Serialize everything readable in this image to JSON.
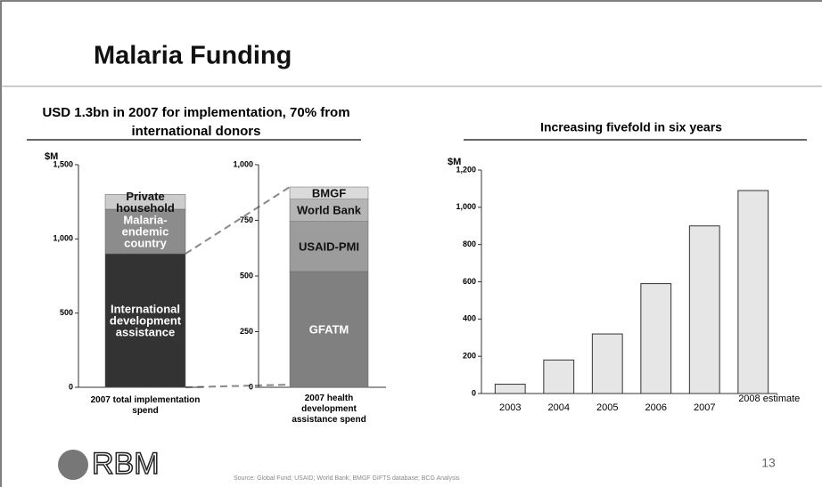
{
  "title": "Malaria Funding",
  "section_title": "USD 1.3bn in 2007 for implementation, 70% from international donors",
  "chart_data": [
    {
      "type": "stacked_bar",
      "y_label": "$M",
      "categories": [
        "2007 total implementation spend"
      ],
      "series": [
        {
          "name": "International development assistance",
          "color": "#333333",
          "values": [
            900
          ]
        },
        {
          "name": "Malaria-endemic country",
          "color": "#8c8c8c",
          "values": [
            300
          ]
        },
        {
          "name": "Private household",
          "color": "#cccccc",
          "values": [
            100
          ]
        }
      ],
      "ylim": [
        0,
        1500
      ],
      "yticks": [
        0,
        500,
        {
          "value": 1000,
          "label": "1,000"
        },
        {
          "value": 1500,
          "label": "1,500"
        }
      ]
    },
    {
      "type": "stacked_bar",
      "categories": [
        "2007 health development assistance spend"
      ],
      "series": [
        {
          "name": "GFATM",
          "color": "#808080",
          "values": [
            520
          ]
        },
        {
          "name": "USAID-PMI",
          "color": "#9c9c9c",
          "values": [
            225
          ]
        },
        {
          "name": "World Bank",
          "color": "#b5b5b5",
          "values": [
            100
          ]
        },
        {
          "name": "BMGF",
          "color": "#dadada",
          "values": [
            55
          ]
        }
      ],
      "ylim": [
        0,
        1000
      ],
      "yticks": [
        0,
        250,
        500,
        750,
        {
          "value": 1000,
          "label": "1,000"
        }
      ]
    },
    {
      "type": "bar",
      "title": "Increasing fivefold in six years",
      "y_label": "$M",
      "categories": [
        "2003",
        "2004",
        "2005",
        "2006",
        "2007",
        "2008 estimate"
      ],
      "values": [
        50,
        180,
        320,
        590,
        900,
        1090
      ],
      "color": "#e6e6e6",
      "ylim": [
        0,
        1200
      ],
      "yticks": [
        0,
        200,
        400,
        600,
        800,
        {
          "value": 1000,
          "label": "1,000"
        },
        {
          "value": 1200,
          "label": "1,200"
        }
      ]
    }
  ],
  "page_number": "13",
  "source": "Source: Global Fund; USAID; World Bank; BMGF GIFTS database; BCG Analysis",
  "logo": "RBM"
}
